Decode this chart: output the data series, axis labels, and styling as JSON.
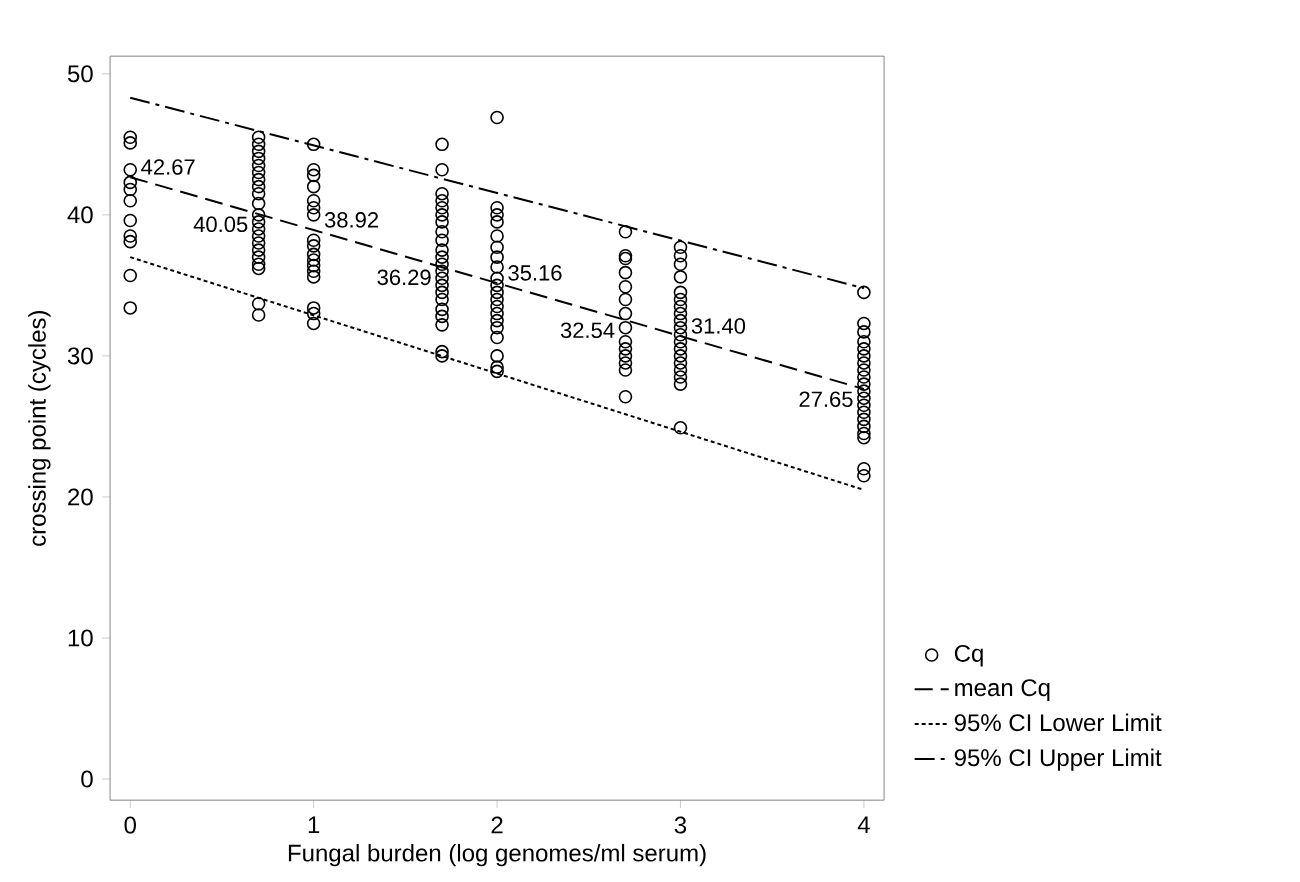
{
  "chart_data": {
    "type": "scatter",
    "xlabel": "Fungal burden (log genomes/ml serum)",
    "ylabel": "crossing point (cycles)",
    "xlim": [
      -0.11,
      4.11
    ],
    "ylim": [
      -1.5,
      51.25
    ],
    "xticks": [
      0,
      1,
      2,
      3,
      4
    ],
    "yticks": [
      0,
      10,
      20,
      30,
      40,
      50
    ],
    "grid": false,
    "legend": "bottom right",
    "series": [
      {
        "name": "Cq",
        "marker": "circle",
        "color": "#000000",
        "x": [
          0,
          0,
          0,
          0,
          0,
          0,
          0,
          0,
          0,
          0,
          0,
          0.7,
          0.7,
          0.7,
          0.7,
          0.7,
          0.7,
          0.7,
          0.7,
          0.7,
          0.7,
          0.7,
          0.7,
          0.7,
          0.7,
          0.7,
          0.7,
          0.7,
          0.7,
          0.7,
          0.7,
          0.7,
          1,
          1,
          1,
          1,
          1,
          1,
          1,
          1,
          1,
          1,
          1,
          1,
          1,
          1,
          1,
          1,
          1,
          1.7,
          1.7,
          1.7,
          1.7,
          1.7,
          1.7,
          1.7,
          1.7,
          1.7,
          1.7,
          1.7,
          1.7,
          1.7,
          1.7,
          1.7,
          1.7,
          1.7,
          1.7,
          1.7,
          1.7,
          1.7,
          1.7,
          2,
          2,
          2,
          2,
          2,
          2,
          2,
          2,
          2,
          2,
          2,
          2,
          2,
          2,
          2,
          2,
          2,
          2,
          2,
          2,
          2.7,
          2.7,
          2.7,
          2.7,
          2.7,
          2.7,
          2.7,
          2.7,
          2.7,
          2.7,
          2.7,
          2.7,
          2.7,
          2.7,
          3,
          3,
          3,
          3,
          3,
          3,
          3,
          3,
          3,
          3,
          3,
          3,
          3,
          3,
          3,
          3,
          3,
          3,
          3,
          4,
          4,
          4,
          4,
          4,
          4,
          4,
          4,
          4,
          4,
          4,
          4,
          4,
          4,
          4,
          4,
          4,
          4,
          4,
          4
        ],
        "values": [
          45.5,
          45.1,
          43.2,
          42.3,
          41.8,
          41.0,
          39.6,
          38.5,
          38.1,
          35.7,
          33.4,
          45.5,
          45.0,
          44.5,
          44.0,
          43.5,
          43.0,
          42.5,
          42.0,
          41.5,
          40.8,
          40.0,
          39.5,
          39.0,
          38.5,
          38.0,
          37.5,
          37.0,
          36.5,
          36.2,
          33.7,
          32.9,
          45.0,
          43.2,
          42.8,
          42.0,
          41.0,
          40.5,
          40.0,
          38.2,
          37.8,
          37.2,
          36.8,
          36.4,
          36.0,
          35.6,
          33.4,
          33.0,
          32.3,
          45.0,
          43.2,
          41.5,
          41.0,
          40.5,
          40.0,
          39.5,
          38.8,
          38.2,
          37.5,
          37.0,
          36.5,
          36.0,
          35.5,
          35.0,
          34.5,
          34.0,
          33.3,
          32.8,
          32.2,
          30.3,
          30.0,
          46.9,
          40.5,
          40.0,
          39.5,
          38.5,
          37.7,
          37.0,
          36.3,
          35.5,
          35.0,
          34.5,
          34.0,
          33.5,
          33.0,
          32.5,
          32.0,
          31.3,
          30.0,
          29.2,
          28.9,
          38.8,
          37.1,
          36.9,
          35.9,
          34.9,
          34.0,
          33.0,
          32.0,
          31.0,
          30.5,
          30.0,
          29.5,
          29.0,
          27.1,
          37.7,
          37.1,
          36.5,
          35.6,
          34.5,
          34.0,
          33.5,
          33.0,
          32.5,
          32.0,
          31.5,
          31.0,
          30.5,
          30.0,
          29.5,
          29.0,
          28.5,
          28.0,
          24.9,
          34.5,
          32.3,
          31.7,
          31.0,
          30.5,
          30.0,
          29.5,
          29.0,
          28.5,
          28.0,
          27.5,
          27.0,
          26.5,
          26.0,
          25.5,
          25.0,
          24.5,
          24.2,
          22.0,
          21.5
        ]
      },
      {
        "name": "mean Cq",
        "type": "line",
        "line_style": "dashed",
        "color": "#000000",
        "x": [
          0,
          0.7,
          1,
          1.7,
          2,
          2.7,
          3,
          4
        ],
        "values": [
          42.67,
          40.05,
          38.92,
          36.29,
          35.16,
          32.54,
          31.4,
          27.65
        ],
        "value_labels": [
          "42.67",
          "40.05",
          "38.92",
          "36.29",
          "35.16",
          "32.54",
          "31.40",
          "27.65"
        ]
      },
      {
        "name": "95% CI Lower Limit",
        "type": "line",
        "line_style": "dotted",
        "color": "#000000",
        "x": [
          0,
          4
        ],
        "values": [
          37.0,
          20.5
        ]
      },
      {
        "name": "95% CI Upper Limit",
        "type": "line",
        "line_style": "dashdot",
        "color": "#000000",
        "x": [
          0,
          4
        ],
        "values": [
          48.3,
          34.8
        ]
      }
    ]
  }
}
